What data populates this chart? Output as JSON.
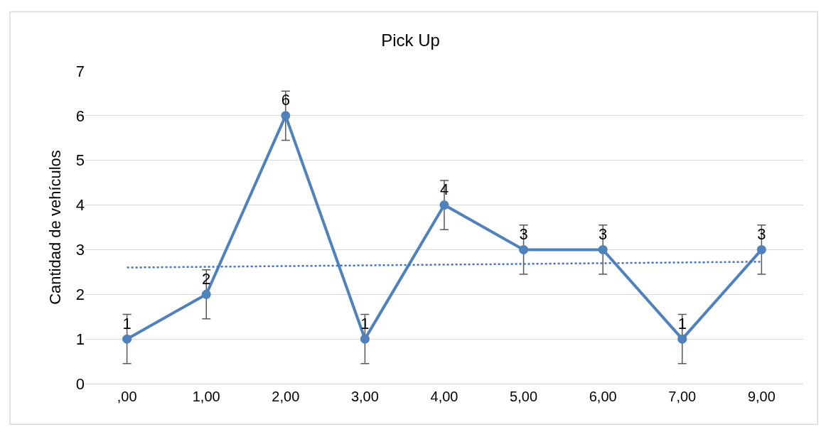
{
  "chart_data": {
    "type": "line",
    "title": "Pick Up",
    "ylabel": "Cantidad de vehículos",
    "categories": [
      ",00",
      "1,00",
      "2,00",
      "3,00",
      "4,00",
      "5,00",
      "6,00",
      "7,00",
      "9,00"
    ],
    "series": [
      {
        "color": "#4f81bd",
        "values": [
          1,
          2,
          6,
          1,
          4,
          3,
          3,
          1,
          3
        ],
        "value_labels": [
          "1",
          "2",
          "6",
          "1",
          "4",
          "3",
          "3",
          "1",
          "3"
        ],
        "errors": [
          0.55,
          0.55,
          0.55,
          0.55,
          0.55,
          0.55,
          0.55,
          0.55,
          0.55
        ],
        "marker": "circle",
        "line_style": "solid"
      },
      {
        "type": "line",
        "color": "#4472c4",
        "x": [
          ",00",
          "9,00"
        ],
        "values": [
          2.6,
          2.73
        ],
        "marker": "none",
        "line_style": "dotted"
      }
    ],
    "ylim": [
      0,
      7
    ],
    "yticks": [
      0,
      1,
      2,
      3,
      4,
      5,
      6,
      7
    ],
    "grid": "y"
  }
}
